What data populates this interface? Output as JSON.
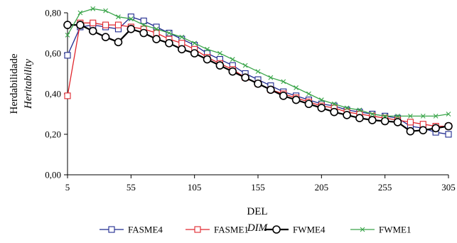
{
  "chart_data": {
    "type": "line",
    "title": "",
    "ylabel": "Herdabilidade",
    "ylabel_sub": "Heritability",
    "xlabel": "DEL",
    "xlabel_sub": "DIM",
    "xlim": [
      5,
      305
    ],
    "ylim": [
      0,
      0.8
    ],
    "x_ticks": [
      5,
      55,
      105,
      155,
      205,
      255,
      305
    ],
    "y_ticks": [
      0,
      0.2,
      0.4,
      0.6,
      0.8
    ],
    "x_tick_labels": [
      "5",
      "55",
      "105",
      "155",
      "205",
      "255",
      "305"
    ],
    "y_tick_labels": [
      "0,00",
      "0,20",
      "0,40",
      "0,60",
      "0,80"
    ],
    "grid": false,
    "legend_position": "bottom",
    "x": [
      5,
      15,
      25,
      35,
      45,
      55,
      65,
      75,
      85,
      95,
      105,
      115,
      125,
      135,
      145,
      155,
      165,
      175,
      185,
      195,
      205,
      215,
      225,
      235,
      245,
      255,
      265,
      275,
      285,
      295,
      305
    ],
    "series": [
      {
        "name": "FASME4",
        "color": "#1f2a8f",
        "marker": "square",
        "values": [
          0.59,
          0.73,
          0.74,
          0.73,
          0.72,
          0.78,
          0.76,
          0.73,
          0.7,
          0.67,
          0.64,
          0.6,
          0.57,
          0.54,
          0.5,
          0.47,
          0.44,
          0.41,
          0.39,
          0.37,
          0.35,
          0.34,
          0.32,
          0.31,
          0.3,
          0.29,
          0.28,
          0.24,
          0.23,
          0.21,
          0.2
        ]
      },
      {
        "name": "FASME1",
        "color": "#e0262d",
        "marker": "square",
        "values": [
          0.39,
          0.75,
          0.75,
          0.74,
          0.74,
          0.73,
          0.72,
          0.7,
          0.67,
          0.65,
          0.62,
          0.58,
          0.55,
          0.52,
          0.48,
          0.45,
          0.42,
          0.4,
          0.38,
          0.36,
          0.34,
          0.33,
          0.31,
          0.3,
          0.29,
          0.28,
          0.27,
          0.26,
          0.25,
          0.24,
          0.24
        ]
      },
      {
        "name": "FWME4",
        "color": "#000000",
        "marker": "circle",
        "values": [
          0.74,
          0.74,
          0.71,
          0.68,
          0.655,
          0.72,
          0.7,
          0.67,
          0.65,
          0.62,
          0.6,
          0.57,
          0.54,
          0.51,
          0.48,
          0.45,
          0.42,
          0.39,
          0.37,
          0.35,
          0.33,
          0.31,
          0.295,
          0.28,
          0.27,
          0.265,
          0.26,
          0.215,
          0.22,
          0.23,
          0.24
        ]
      },
      {
        "name": "FWME1",
        "color": "#3aa54a",
        "marker": "x",
        "values": [
          0.69,
          0.8,
          0.82,
          0.81,
          0.78,
          0.77,
          0.74,
          0.72,
          0.7,
          0.68,
          0.65,
          0.62,
          0.6,
          0.57,
          0.54,
          0.51,
          0.48,
          0.46,
          0.43,
          0.4,
          0.37,
          0.35,
          0.33,
          0.32,
          0.3,
          0.29,
          0.29,
          0.29,
          0.29,
          0.29,
          0.3
        ]
      }
    ]
  }
}
